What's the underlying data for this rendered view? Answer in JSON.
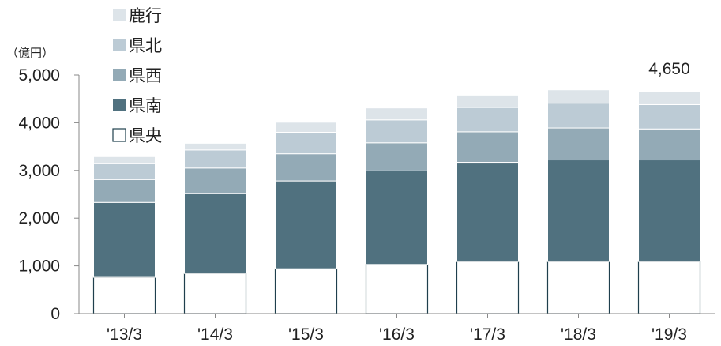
{
  "chart_data": {
    "type": "bar",
    "stacked": true,
    "unit_label": "（億円）",
    "categories": [
      "'13/3",
      "'14/3",
      "'15/3",
      "'16/3",
      "'17/3",
      "'18/3",
      "'19/3"
    ],
    "ylim": [
      0,
      5000
    ],
    "yticks": [
      0,
      1000,
      2000,
      3000,
      4000,
      5000
    ],
    "ytick_labels": [
      "0",
      "1,000",
      "2,000",
      "3,000",
      "4,000",
      "5,000"
    ],
    "series": [
      {
        "name": "県央",
        "color": "#ffffff",
        "values": [
          760,
          840,
          940,
          1030,
          1090,
          1090,
          1090
        ]
      },
      {
        "name": "県南",
        "color": "#50717f",
        "values": [
          1570,
          1680,
          1840,
          1960,
          2080,
          2130,
          2130
        ]
      },
      {
        "name": "県西",
        "color": "#93aab6",
        "values": [
          480,
          530,
          570,
          590,
          640,
          670,
          650
        ]
      },
      {
        "name": "県北",
        "color": "#bccbd5",
        "values": [
          340,
          380,
          450,
          480,
          510,
          520,
          510
        ]
      },
      {
        "name": "鹿行",
        "color": "#dde4e9",
        "values": [
          140,
          140,
          210,
          250,
          260,
          280,
          270
        ]
      }
    ],
    "legend_order": [
      "鹿行",
      "県北",
      "県西",
      "県南",
      "県央"
    ],
    "annotations": [
      {
        "category": "'19/3",
        "text": "4,650"
      }
    ],
    "grid": false
  }
}
